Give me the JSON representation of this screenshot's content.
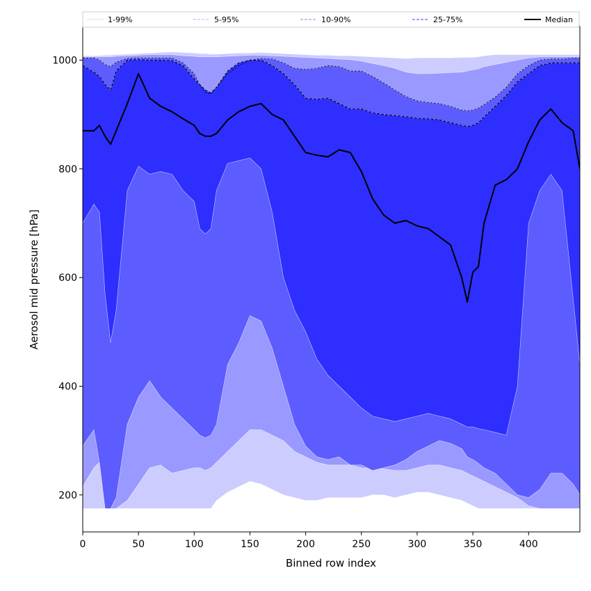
{
  "chart_data": {
    "type": "area",
    "xlabel": "Binned row index",
    "ylabel": "Aerosol mid pressure [hPa]",
    "xlim": [
      0,
      446
    ],
    "ylim": [
      132,
      1062
    ],
    "xticks": [
      0,
      50,
      100,
      150,
      200,
      250,
      300,
      350,
      400
    ],
    "yticks": [
      200,
      400,
      600,
      800,
      1000
    ],
    "legend_position": "top, spanning full width",
    "colors": {
      "band_1_99": "#ccccff",
      "band_5_95": "#9999ff",
      "band_10_90": "#5c5cff",
      "band_25_75": "#2e2eff",
      "median": "#000000",
      "outline": "#ffffff"
    },
    "legend": [
      {
        "label": "1-99%",
        "style": "solid",
        "color": "#d8d8ff"
      },
      {
        "label": "5-95%",
        "style": "dashed",
        "color": "#b3b3ff"
      },
      {
        "label": "10-90%",
        "style": "dashed",
        "color": "#7f7fff"
      },
      {
        "label": "25-75%",
        "style": "dashed",
        "color": "#3d3dff"
      },
      {
        "label": "Median",
        "style": "solid",
        "color": "#000000"
      }
    ],
    "x": [
      0,
      10,
      15,
      20,
      25,
      30,
      40,
      50,
      60,
      70,
      80,
      90,
      100,
      105,
      110,
      115,
      120,
      130,
      140,
      150,
      160,
      170,
      180,
      190,
      200,
      210,
      220,
      230,
      240,
      250,
      260,
      270,
      280,
      290,
      300,
      310,
      320,
      330,
      340,
      345,
      350,
      355,
      360,
      370,
      380,
      390,
      400,
      410,
      420,
      430,
      440,
      446
    ],
    "series": [
      {
        "name": "1-99% upper",
        "values": [
          1008,
          1008,
          1008,
          1009,
          1009,
          1010,
          1011,
          1012,
          1013,
          1014,
          1015,
          1014,
          1013,
          1012,
          1012,
          1011,
          1011,
          1012,
          1013,
          1013,
          1014,
          1013,
          1012,
          1011,
          1010,
          1009,
          1009,
          1008,
          1008,
          1007,
          1006,
          1005,
          1004,
          1003,
          1004,
          1004,
          1004,
          1004,
          1005,
          1005,
          1005,
          1006,
          1008,
          1010,
          1010,
          1010,
          1010,
          1010,
          1010,
          1010,
          1010,
          1010
        ]
      },
      {
        "name": "5-95% upper",
        "values": [
          1006,
          1006,
          1006,
          1006,
          1006,
          1007,
          1008,
          1009,
          1010,
          1010,
          1010,
          1008,
          1007,
          1006,
          1006,
          1006,
          1006,
          1007,
          1008,
          1009,
          1009,
          1008,
          1007,
          1006,
          1005,
          1004,
          1003,
          1002,
          1001,
          998,
          994,
          990,
          985,
          978,
          975,
          975,
          976,
          977,
          978,
          980,
          982,
          984,
          988,
          992,
          996,
          1000,
          1004,
          1006,
          1006,
          1006,
          1006,
          1006
        ]
      },
      {
        "name": "10-90% upper",
        "values": [
          1004,
          1004,
          1000,
          992,
          988,
          996,
          1003,
          1004,
          1004,
          1004,
          1004,
          995,
          975,
          955,
          940,
          938,
          950,
          975,
          990,
          1000,
          1003,
          1002,
          995,
          985,
          983,
          985,
          990,
          988,
          980,
          980,
          970,
          958,
          945,
          933,
          925,
          922,
          920,
          915,
          908,
          907,
          908,
          912,
          918,
          932,
          950,
          975,
          990,
          1000,
          1002,
          1002,
          1004,
          1004
        ]
      },
      {
        "name": "25-75% upper",
        "values": [
          990,
          978,
          970,
          955,
          945,
          980,
          1000,
          1001,
          1000,
          1000,
          999,
          990,
          965,
          955,
          945,
          940,
          950,
          980,
          995,
          1000,
          1000,
          990,
          975,
          955,
          930,
          928,
          930,
          920,
          910,
          910,
          903,
          900,
          898,
          896,
          893,
          892,
          890,
          885,
          880,
          878,
          880,
          885,
          895,
          915,
          935,
          960,
          975,
          990,
          995,
          995,
          995,
          995
        ]
      },
      {
        "name": "Median",
        "values": [
          870,
          870,
          880,
          860,
          845,
          870,
          920,
          975,
          930,
          915,
          905,
          892,
          880,
          865,
          860,
          860,
          865,
          890,
          905,
          915,
          920,
          900,
          890,
          860,
          830,
          825,
          822,
          835,
          830,
          795,
          745,
          715,
          700,
          705,
          695,
          690,
          675,
          660,
          600,
          555,
          610,
          620,
          700,
          770,
          780,
          800,
          850,
          890,
          910,
          885,
          870,
          800
        ]
      },
      {
        "name": "25-75% lower",
        "values": [
          700,
          735,
          720,
          570,
          480,
          540,
          760,
          805,
          790,
          795,
          790,
          760,
          740,
          690,
          680,
          690,
          760,
          810,
          815,
          820,
          800,
          720,
          600,
          540,
          500,
          450,
          420,
          400,
          380,
          360,
          345,
          340,
          335,
          340,
          345,
          350,
          345,
          340,
          330,
          325,
          325,
          322,
          320,
          315,
          310,
          400,
          700,
          760,
          790,
          760,
          560,
          440
        ]
      },
      {
        "name": "10-90% lower",
        "values": [
          290,
          320,
          260,
          175,
          175,
          195,
          330,
          380,
          410,
          380,
          360,
          340,
          320,
          310,
          305,
          310,
          330,
          440,
          480,
          530,
          520,
          470,
          400,
          330,
          290,
          270,
          265,
          270,
          255,
          255,
          245,
          250,
          255,
          265,
          280,
          290,
          300,
          295,
          285,
          270,
          265,
          258,
          250,
          240,
          220,
          200,
          195,
          210,
          240,
          240,
          220,
          200
        ]
      },
      {
        "name": "5-95% lower",
        "values": [
          215,
          250,
          260,
          175,
          175,
          175,
          190,
          220,
          250,
          255,
          240,
          245,
          250,
          250,
          245,
          250,
          260,
          280,
          300,
          320,
          320,
          310,
          300,
          280,
          270,
          260,
          255,
          255,
          255,
          250,
          248,
          248,
          245,
          245,
          250,
          255,
          255,
          250,
          245,
          240,
          235,
          230,
          225,
          215,
          205,
          195,
          180,
          175,
          175,
          175,
          175,
          175
        ]
      },
      {
        "name": "1-99% lower",
        "values": [
          175,
          175,
          175,
          175,
          175,
          175,
          175,
          175,
          175,
          175,
          175,
          175,
          175,
          175,
          175,
          175,
          190,
          205,
          215,
          225,
          220,
          210,
          200,
          195,
          190,
          190,
          195,
          195,
          195,
          195,
          200,
          200,
          195,
          200,
          205,
          205,
          200,
          195,
          190,
          185,
          180,
          175,
          175,
          175,
          175,
          175,
          175,
          175,
          175,
          175,
          175,
          175
        ]
      }
    ]
  }
}
